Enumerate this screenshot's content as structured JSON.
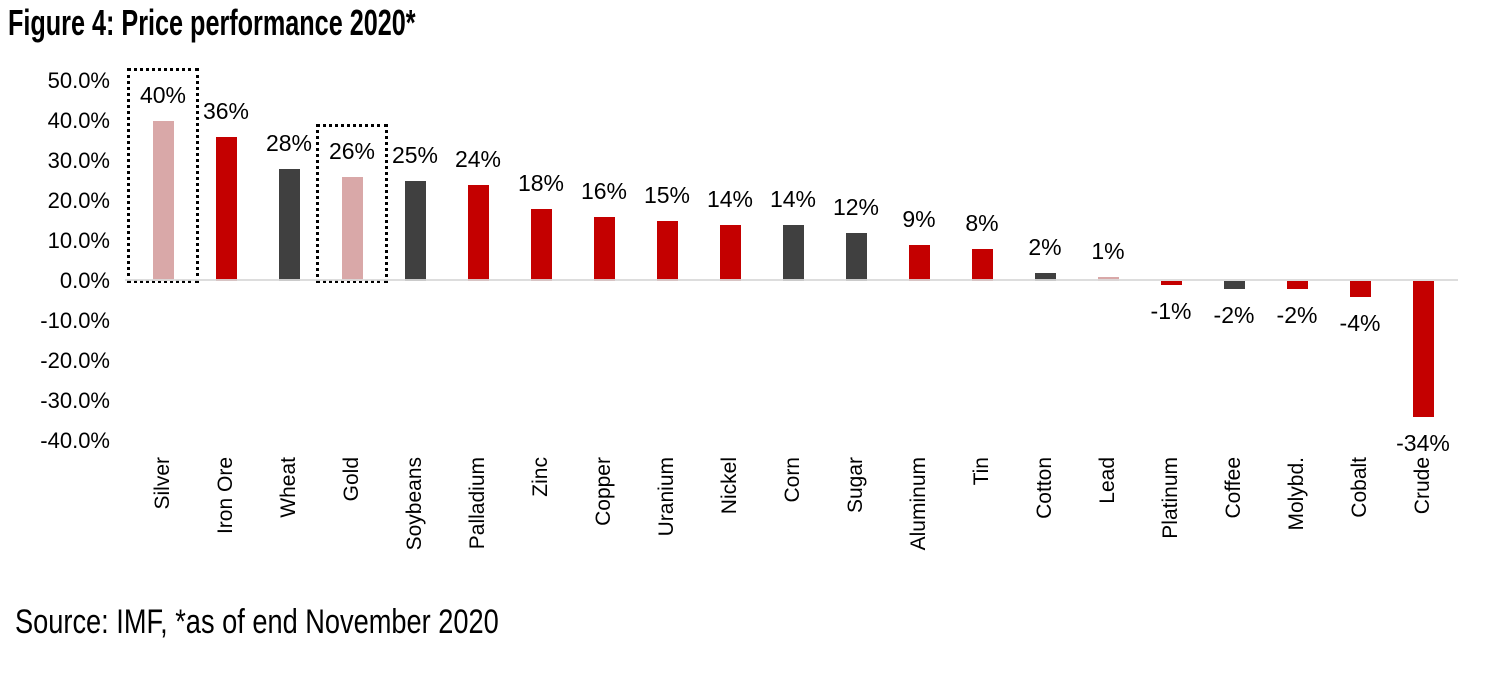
{
  "figure": {
    "title": "Figure 4: Price performance 2020*",
    "source": "Source: IMF, *as of end November 2020"
  },
  "chart_data": {
    "type": "bar",
    "title": "Figure 4: Price performance 2020*",
    "xlabel": "",
    "ylabel": "",
    "ylim": [
      -40,
      50
    ],
    "grid": false,
    "legend": null,
    "categories": [
      "Silver",
      "Iron Ore",
      "Wheat",
      "Gold",
      "Soybeans",
      "Palladium",
      "Zinc",
      "Copper",
      "Uranium",
      "Nickel",
      "Corn",
      "Sugar",
      "Aluminum",
      "Tin",
      "Cotton",
      "Lead",
      "Platinum",
      "Coffee",
      "Molybd.",
      "Cobalt",
      "Crude"
    ],
    "values": [
      40,
      36,
      28,
      26,
      25,
      24,
      18,
      16,
      15,
      14,
      14,
      12,
      9,
      8,
      2,
      1,
      -1,
      -2,
      -2,
      -4,
      -34
    ],
    "value_labels": [
      "40%",
      "36%",
      "28%",
      "26%",
      "25%",
      "24%",
      "18%",
      "16%",
      "15%",
      "14%",
      "14%",
      "12%",
      "9%",
      "8%",
      "2%",
      "1%",
      "-1%",
      "-2%",
      "-2%",
      "-4%",
      "-34%"
    ],
    "bar_color_keys": [
      "pink",
      "red",
      "gray",
      "pink",
      "gray",
      "red",
      "red",
      "red",
      "red",
      "red",
      "gray",
      "gray",
      "red",
      "red",
      "gray",
      "pink",
      "red",
      "gray",
      "red",
      "red",
      "red"
    ],
    "highlighted_categories": [
      "Silver",
      "Gold"
    ],
    "y_ticks": [
      {
        "label": "50.0%",
        "value": 50
      },
      {
        "label": "40.0%",
        "value": 40
      },
      {
        "label": "30.0%",
        "value": 30
      },
      {
        "label": "20.0%",
        "value": 20
      },
      {
        "label": "10.0%",
        "value": 10
      },
      {
        "label": "0.0%",
        "value": 0
      },
      {
        "label": "-10.0%",
        "value": -10
      },
      {
        "label": "-20.0%",
        "value": -20
      },
      {
        "label": "-30.0%",
        "value": -30
      },
      {
        "label": "-40.0%",
        "value": -40
      }
    ],
    "colors": {
      "red": "#c40000",
      "pink": "#d9a8a8",
      "gray": "#404040",
      "zero_line": "#d9d9d9",
      "highlight_border": "#000000"
    }
  }
}
